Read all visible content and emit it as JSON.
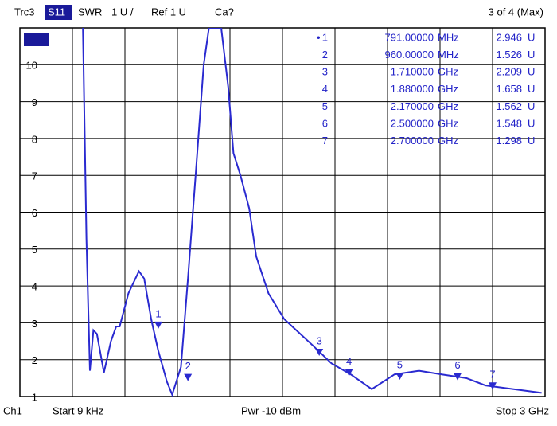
{
  "chart_data": {
    "type": "line",
    "header": [
      "Trc3",
      "S11",
      "SWR",
      "1 U /",
      "Ref 1 U",
      "Ca?"
    ],
    "status": "3 of 4 (Max)",
    "footer": {
      "channel": "Ch1",
      "start": "Start  9 kHz",
      "power": "Pwr  -10 dBm",
      "stop": "Stop  3 GHz"
    },
    "xlim": [
      0,
      3
    ],
    "xticks": [
      0,
      0.3,
      0.6,
      0.9,
      1.2,
      1.5,
      1.8,
      2.1,
      2.4,
      2.7,
      3
    ],
    "ylim": [
      1,
      11
    ],
    "yticks": [
      1,
      2,
      3,
      4,
      5,
      6,
      7,
      8,
      9,
      10
    ],
    "grid": true,
    "series": [
      {
        "color": "#2a2ad0",
        "x": [
          0.36,
          0.38,
          0.4,
          0.42,
          0.44,
          0.48,
          0.52,
          0.55,
          0.57,
          0.62,
          0.68,
          0.71,
          0.75,
          0.79,
          0.84,
          0.87,
          0.92,
          0.96,
          1.01,
          1.05,
          1.08,
          1.15,
          1.19,
          1.22,
          1.26,
          1.31,
          1.35,
          1.42,
          1.51,
          1.67,
          1.78,
          1.89,
          2.01,
          2.14,
          2.28,
          2.41,
          2.55,
          2.66,
          2.82,
          2.98
        ],
        "values": [
          11,
          5.3,
          1.7,
          2.8,
          2.7,
          1.65,
          2.5,
          2.9,
          2.9,
          3.8,
          4.4,
          4.2,
          3.1,
          2.25,
          1.4,
          1.05,
          1.8,
          4.2,
          7.4,
          10.0,
          11,
          11,
          9.4,
          7.6,
          7.0,
          6.1,
          4.8,
          3.8,
          3.1,
          2.4,
          1.9,
          1.6,
          1.2,
          1.6,
          1.7,
          1.6,
          1.5,
          1.3,
          1.2,
          1.1
        ]
      }
    ],
    "markers": [
      {
        "name": "1",
        "freq": {
          "value": 0.791,
          "label": "791.00000"
        },
        "unit": "MHz",
        "swr": {
          "value": 2.946,
          "label": "2.946"
        },
        "swr_unit": "U"
      },
      {
        "name": "2",
        "freq": {
          "value": 0.96,
          "label": "960.00000"
        },
        "unit": "MHz",
        "swr": {
          "value": 1.526,
          "label": "1.526"
        },
        "swr_unit": "U"
      },
      {
        "name": "3",
        "freq": {
          "value": 1.71,
          "label": "1.710000"
        },
        "unit": "GHz",
        "swr": {
          "value": 2.209,
          "label": "2.209"
        },
        "swr_unit": "U"
      },
      {
        "name": "4",
        "freq": {
          "value": 1.88,
          "label": "1.880000"
        },
        "unit": "GHz",
        "swr": {
          "value": 1.658,
          "label": "1.658"
        },
        "swr_unit": "U"
      },
      {
        "name": "5",
        "freq": {
          "value": 2.17,
          "label": "2.170000"
        },
        "unit": "GHz",
        "swr": {
          "value": 1.562,
          "label": "1.562"
        },
        "swr_unit": "U"
      },
      {
        "name": "6",
        "freq": {
          "value": 2.5,
          "label": "2.500000"
        },
        "unit": "GHz",
        "swr": {
          "value": 1.548,
          "label": "1.548"
        },
        "swr_unit": "U"
      },
      {
        "name": "7",
        "freq": {
          "value": 2.7,
          "label": "2.700000"
        },
        "unit": "GHz",
        "swr": {
          "value": 1.298,
          "label": "1.298"
        },
        "swr_unit": "U"
      }
    ]
  }
}
